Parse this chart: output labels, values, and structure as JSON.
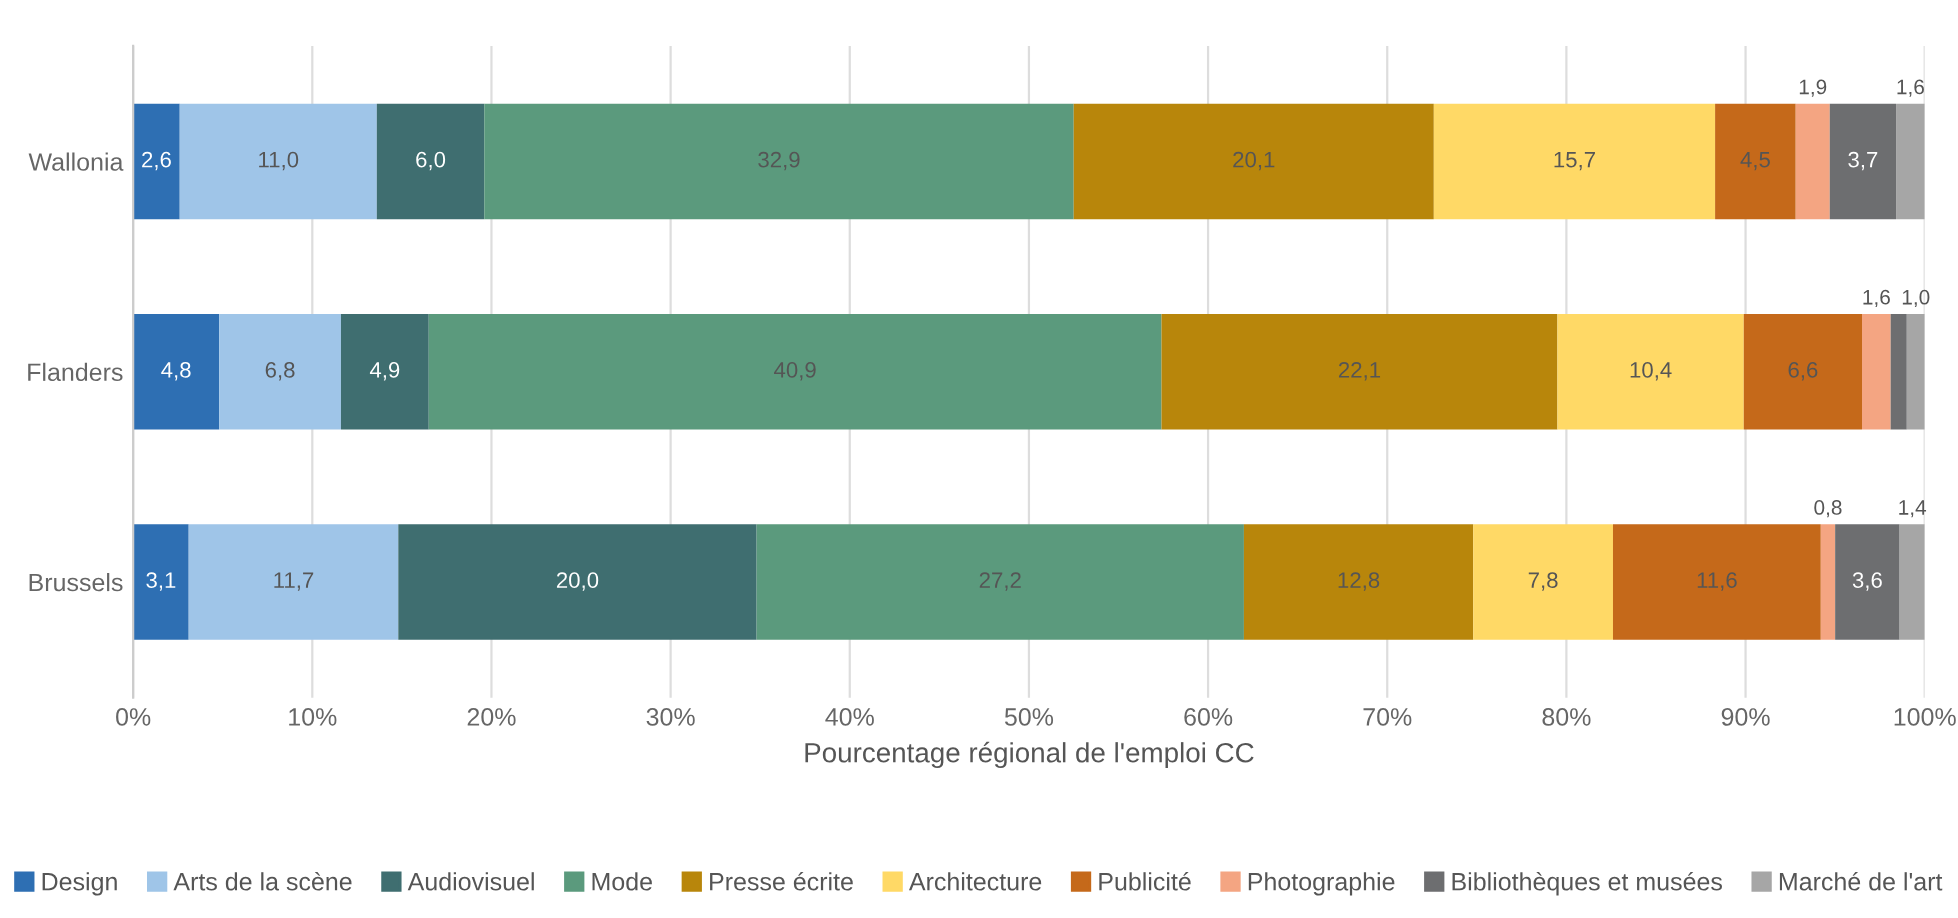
{
  "chart_data": {
    "type": "bar",
    "orientation": "horizontal",
    "stacked": true,
    "xlabel": "Pourcentage régional de l'emploi CC",
    "categories": [
      "Wallonia",
      "Flanders",
      "Brussels"
    ],
    "xlim": [
      0,
      100
    ],
    "xticks": [
      {
        "value": 0,
        "label": "0%"
      },
      {
        "value": 10,
        "label": "10%"
      },
      {
        "value": 20,
        "label": "20%"
      },
      {
        "value": 30,
        "label": "30%"
      },
      {
        "value": 40,
        "label": "40%"
      },
      {
        "value": 50,
        "label": "50%"
      },
      {
        "value": 60,
        "label": "60%"
      },
      {
        "value": 70,
        "label": "70%"
      },
      {
        "value": 80,
        "label": "80%"
      },
      {
        "value": 90,
        "label": "90%"
      },
      {
        "value": 100,
        "label": "100%"
      }
    ],
    "grid": "x",
    "legend": "bottom",
    "series": [
      {
        "name": "Design",
        "color": "#2e6fb3",
        "values": [
          2.6,
          4.8,
          3.1
        ],
        "value_labels": [
          "2,6",
          "4,8",
          "3,1"
        ]
      },
      {
        "name": "Arts de la scène",
        "color": "#9fc5e8",
        "values": [
          11.0,
          6.8,
          11.7
        ],
        "value_labels": [
          "11,0",
          "6,8",
          "11,7"
        ]
      },
      {
        "name": "Audiovisuel",
        "color": "#3f6e70",
        "values": [
          6.0,
          4.9,
          20.0
        ],
        "value_labels": [
          "6,0",
          "4,9",
          "20,0"
        ]
      },
      {
        "name": "Mode",
        "color": "#5b9a7d",
        "values": [
          32.9,
          40.9,
          27.2
        ],
        "value_labels": [
          "32,9",
          "40,9",
          "27,2"
        ]
      },
      {
        "name": "Presse écrite",
        "color": "#b8860b",
        "values": [
          20.1,
          22.1,
          12.8
        ],
        "value_labels": [
          "20,1",
          "22,1",
          "12,8"
        ]
      },
      {
        "name": "Architecture",
        "color": "#ffd966",
        "values": [
          15.7,
          10.4,
          7.8
        ],
        "value_labels": [
          "15,7",
          "10,4",
          "7,8"
        ]
      },
      {
        "name": "Publicité",
        "color": "#c5691a",
        "values": [
          4.5,
          6.6,
          11.6
        ],
        "value_labels": [
          "4,5",
          "6,6",
          "11,6"
        ]
      },
      {
        "name": "Photographie",
        "color": "#f4a582",
        "values": [
          1.9,
          1.6,
          0.8
        ],
        "value_labels": [
          "1,9",
          "1,6",
          "0,8"
        ]
      },
      {
        "name": "Bibliothèques et musées",
        "color": "#6d6e70",
        "values": [
          3.7,
          0.9,
          3.6
        ],
        "value_labels": [
          "3,7",
          null,
          "3,6"
        ]
      },
      {
        "name": "Marché de l'art",
        "color": "#a6a6a6",
        "values": [
          1.6,
          1.0,
          1.4
        ],
        "value_labels": [
          "1,6",
          "1,0",
          "1,4"
        ]
      }
    ]
  }
}
